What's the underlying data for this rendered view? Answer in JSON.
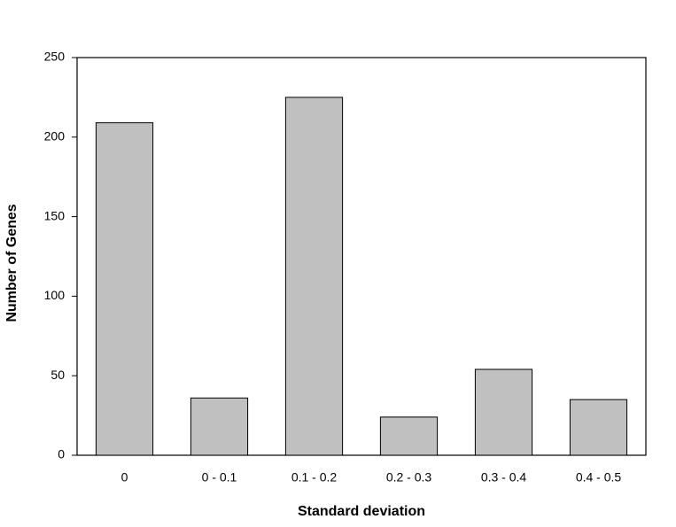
{
  "chart_data": {
    "type": "bar",
    "x_label": "Standard deviation",
    "y_label": "Number of Genes",
    "categories": [
      "0",
      "0 - 0.1",
      "0.1 - 0.2",
      "0.2 - 0.3",
      "0.3 - 0.4",
      "0.4 - 0.5"
    ],
    "values": [
      209,
      36,
      225,
      24,
      54,
      35
    ],
    "color": "#c0c0c0",
    "ylim": [
      0,
      250
    ],
    "yticks": [
      0,
      50,
      100,
      150,
      200,
      250
    ],
    "grid": false
  }
}
